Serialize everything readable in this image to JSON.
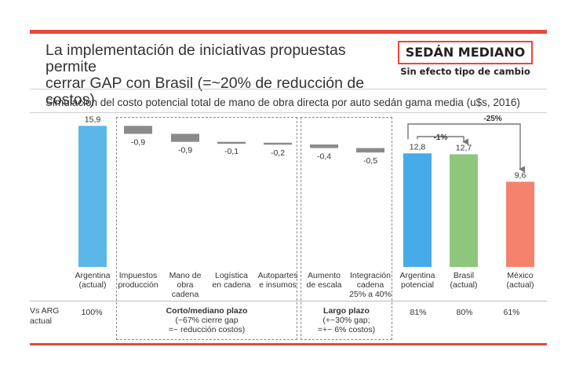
{
  "headline": {
    "line1": "La implementación de iniciativas propuestas permite",
    "line2": "cerrar GAP con Brasil (=~20% de reducción de costos)"
  },
  "tag": {
    "title": "SEDÁN MEDIANO",
    "subtitle": "Sin efecto tipo de cambio"
  },
  "subtitle": "Simulación del costo potencial total de mano de obra directa por auto sedán gama media  (u$s, 2016)",
  "footer": {
    "row_label": [
      "Vs ARG",
      "actual"
    ],
    "arg_actual_pct": "100%",
    "short_term": {
      "title": "Corto/mediano plazo",
      "line1": "(~67% cierre gap",
      "line2": "=~ reducción costos)"
    },
    "long_term": {
      "title": "Largo plazo",
      "line1": "(+~30% gap;",
      "line2": "=+~ 6% costos)"
    },
    "arg_potential_pct": "81%",
    "brasil_pct": "80%",
    "mexico_pct": "61%"
  },
  "chart_data": {
    "type": "bar",
    "variant": "waterfall",
    "categories": [
      [
        "Argentina",
        "(actual)"
      ],
      [
        "Impuestos",
        "producción"
      ],
      [
        "Mano de",
        "obra",
        "cadena"
      ],
      [
        "Logística",
        "en cadena"
      ],
      [
        "Autopartes",
        "e insumos"
      ],
      [
        "Aumento",
        "de escala"
      ],
      [
        "Integración",
        "cadena",
        "25% a 40%"
      ],
      [
        "Argentina",
        "potencial"
      ],
      [
        "Brasil",
        "(actual)"
      ],
      [
        "México",
        "(actual)"
      ]
    ],
    "values": [
      15.9,
      -0.9,
      -0.9,
      -0.1,
      -0.2,
      -0.4,
      -0.5,
      12.8,
      12.7,
      9.6
    ],
    "value_labels": [
      "15,9",
      "-0,9",
      "-0,9",
      "-0,1",
      "-0,2",
      "-0,4",
      "-0,5",
      "12,8",
      "12,7",
      "9,6"
    ],
    "kinds": [
      "total",
      "delta",
      "delta",
      "delta",
      "delta",
      "delta",
      "delta",
      "total",
      "total",
      "total"
    ],
    "colors": [
      "#5bb7e8",
      "#8a8a8a",
      "#8a8a8a",
      "#8a8a8a",
      "#8a8a8a",
      "#8a8a8a",
      "#8a8a8a",
      "#46abe6",
      "#8dc77b",
      "#f5826c"
    ],
    "annotations": [
      {
        "from": "Argentina potencial",
        "to": "Brasil (actual)",
        "label": "-1%"
      },
      {
        "from": "Argentina potencial",
        "to": "México (actual)",
        "label": "-25%"
      }
    ],
    "ylim": [
      0,
      16
    ],
    "grid": false,
    "legend": "none"
  }
}
